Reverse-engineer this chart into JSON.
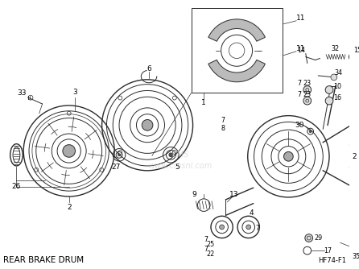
{
  "label_bottom_left": "REAR BRAKE DRUM",
  "label_bottom_right": "HF74-F1",
  "background_color": "#ffffff",
  "text_color": "#000000",
  "line_color": "#2a2a2a",
  "watermark_color": "#cccccc",
  "figsize": [
    4.46,
    3.34
  ],
  "dpi": 100,
  "title_fontsize": 7.5,
  "diagram_code_fontsize": 6,
  "label_fontsize": 6.5,
  "small_label_fontsize": 5.8
}
